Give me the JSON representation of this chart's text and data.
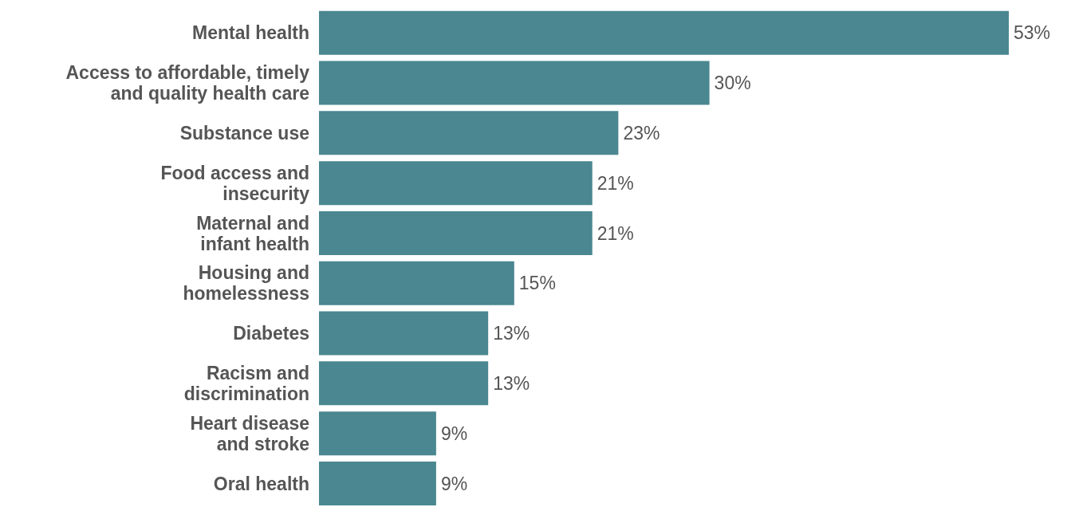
{
  "chart_data": {
    "type": "bar",
    "orientation": "horizontal",
    "categories": [
      "Mental health",
      "Access to affordable, timely and quality health care",
      "Substance use",
      "Food access and insecurity",
      "Maternal and infant health",
      "Housing and homelessness",
      "Diabetes",
      "Racism and discrimination",
      "Heart disease and stroke",
      "Oral health"
    ],
    "values": [
      53,
      30,
      23,
      21,
      21,
      15,
      13,
      13,
      9,
      9
    ],
    "value_labels": [
      "53%",
      "30%",
      "23%",
      "21%",
      "21%",
      "15%",
      "13%",
      "13%",
      "9%",
      "9%"
    ],
    "color": "#4a8790",
    "grid": false,
    "legend": false
  }
}
